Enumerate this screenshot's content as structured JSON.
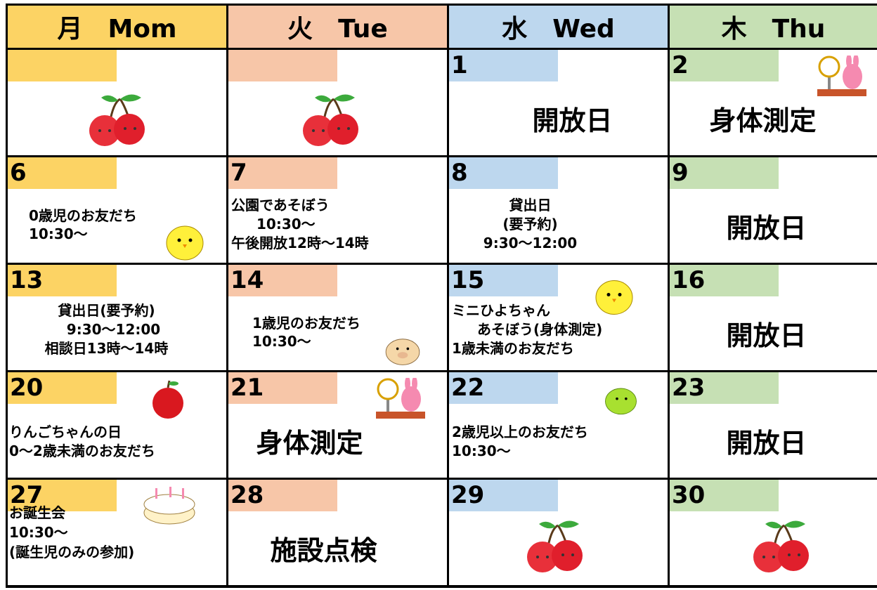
{
  "header": {
    "days": [
      "月　Mom",
      "火　Tue",
      "水　Wed",
      "木　Thu"
    ]
  },
  "weeks": [
    {
      "cells": [
        {
          "lines": []
        },
        {
          "lines": []
        },
        {
          "date": 1,
          "lines": [
            "開放日"
          ]
        },
        {
          "date": 2,
          "lines": [
            "身体測定"
          ]
        }
      ]
    },
    {
      "cells": [
        {
          "date": 6,
          "lines": [
            "0歳児のお友だち",
            "10:30～"
          ]
        },
        {
          "date": 7,
          "lines": [
            "公園であそぼう",
            "10:30～",
            "午後開放12時～14時"
          ]
        },
        {
          "date": 8,
          "lines": [
            "貸出日",
            "(要予約)",
            "9:30～12:00"
          ]
        },
        {
          "date": 9,
          "lines": [
            "開放日"
          ]
        }
      ]
    },
    {
      "cells": [
        {
          "date": 13,
          "lines": [
            "貸出日(要予約)",
            "9:30～12:00",
            "相談日13時～14時"
          ]
        },
        {
          "date": 14,
          "lines": [
            "1歳児のお友だち",
            "10:30～"
          ]
        },
        {
          "date": 15,
          "lines": [
            "ミニひよちゃん",
            "あそぼう(身体測定)",
            "1歳未満のお友だち"
          ]
        },
        {
          "date": 16,
          "lines": [
            "開放日"
          ]
        }
      ]
    },
    {
      "cells": [
        {
          "date": 20,
          "lines": [
            "りんごちゃんの日",
            "0～2歳未満のお友だち"
          ]
        },
        {
          "date": 21,
          "lines": [
            "身体測定"
          ]
        },
        {
          "date": 22,
          "lines": [
            "2歳児以上のお友だち",
            "10:30～"
          ]
        },
        {
          "date": 23,
          "lines": [
            "開放日"
          ]
        }
      ]
    },
    {
      "cells": [
        {
          "date": 27,
          "lines": [
            "お誕生会",
            "10:30～",
            "(誕生児のみの参加)"
          ]
        },
        {
          "date": 28,
          "lines": [
            "施設点検"
          ]
        },
        {
          "date": 29,
          "lines": []
        },
        {
          "date": 30,
          "lines": []
        }
      ]
    }
  ]
}
